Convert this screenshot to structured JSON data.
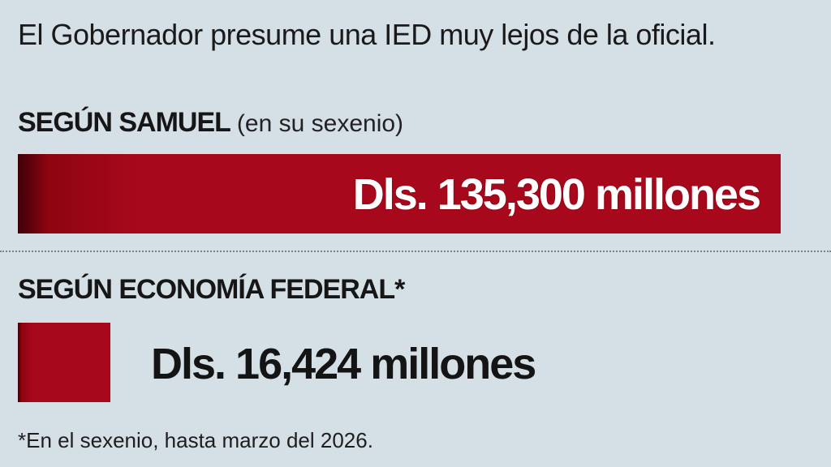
{
  "headline": "El Gobernador presume una IED muy lejos de la oficial.",
  "colors": {
    "background": "#d5dfe6",
    "bar": "#a8081b",
    "text": "#161616"
  },
  "sections": [
    {
      "title": "SEGÚN SAMUEL",
      "subtitle": "(en su sexenio)",
      "value_label": "Dls. 135,300 millones"
    },
    {
      "title": "SEGÚN ECONOMÍA FEDERAL*",
      "value_label": "Dls. 16,424 millones"
    }
  ],
  "footnote": "*En el sexenio, hasta marzo del 2026.",
  "chart_data": {
    "type": "bar",
    "orientation": "horizontal",
    "categories": [
      "SEGÚN SAMUEL",
      "SEGÚN ECONOMÍA FEDERAL*"
    ],
    "values": [
      135300,
      16424
    ],
    "unit": "millones de dólares",
    "grid": false
  }
}
